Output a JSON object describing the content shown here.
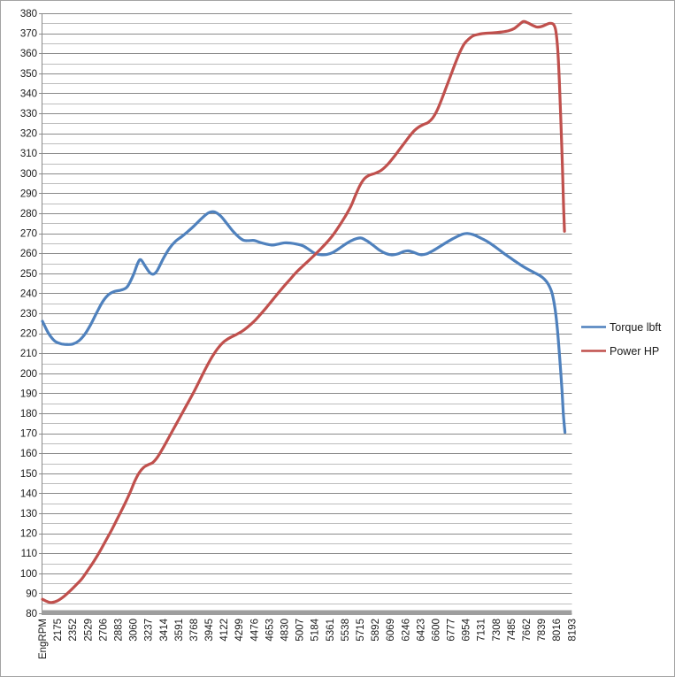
{
  "chart_data": {
    "type": "line",
    "title": "",
    "x_axis": {
      "label_rotation_deg": 90,
      "tick_labels": [
        "EngRPM",
        "2175",
        "2352",
        "2529",
        "2706",
        "2883",
        "3060",
        "3237",
        "3414",
        "3591",
        "3768",
        "3945",
        "4122",
        "4299",
        "4476",
        "4653",
        "4830",
        "5007",
        "5184",
        "5361",
        "5538",
        "5715",
        "5892",
        "6069",
        "6246",
        "6423",
        "6600",
        "6777",
        "6954",
        "7131",
        "7308",
        "7485",
        "7662",
        "7839",
        "8016",
        "8193"
      ]
    },
    "y_axis": {
      "min": 80,
      "max": 380,
      "major_step": 10,
      "minor_step": 5,
      "tick_labels": [
        "380",
        "370",
        "360",
        "350",
        "340",
        "330",
        "320",
        "310",
        "300",
        "290",
        "280",
        "270",
        "260",
        "250",
        "240",
        "230",
        "220",
        "210",
        "200",
        "190",
        "180",
        "170",
        "160",
        "150",
        "140",
        "130",
        "120",
        "110",
        "100",
        "90",
        "80"
      ]
    },
    "grid": {
      "major_color": "#8a8a8a",
      "minor_color": "#bdbdbd",
      "axis_bar_color": "#9e9e9e",
      "minor_on": true
    },
    "legend": {
      "position": "right"
    },
    "series": [
      {
        "name": "Torque lbft",
        "color": "#4F81BD",
        "points": [
          [
            0,
            226
          ],
          [
            0.4,
            220
          ],
          [
            0.8,
            216.2
          ],
          [
            1.2,
            214.8
          ],
          [
            1.6,
            214.4
          ],
          [
            2,
            214.6
          ],
          [
            2.4,
            216.2
          ],
          [
            2.8,
            219.5
          ],
          [
            3.2,
            224.5
          ],
          [
            3.6,
            230.5
          ],
          [
            4,
            236
          ],
          [
            4.4,
            239.5
          ],
          [
            4.8,
            241
          ],
          [
            5.2,
            241.6
          ],
          [
            5.6,
            243.2
          ],
          [
            6,
            249
          ],
          [
            6.3,
            255
          ],
          [
            6.5,
            256.8
          ],
          [
            6.8,
            253.5
          ],
          [
            7.1,
            250.3
          ],
          [
            7.35,
            249.6
          ],
          [
            7.6,
            251.5
          ],
          [
            8,
            257.5
          ],
          [
            8.4,
            262.5
          ],
          [
            8.8,
            266
          ],
          [
            9.2,
            268.3
          ],
          [
            9.6,
            270.8
          ],
          [
            10,
            273.5
          ],
          [
            10.4,
            276.5
          ],
          [
            10.8,
            279.3
          ],
          [
            11.1,
            280.6
          ],
          [
            11.4,
            280.6
          ],
          [
            11.8,
            278.5
          ],
          [
            12.2,
            274.8
          ],
          [
            12.6,
            271
          ],
          [
            13,
            268
          ],
          [
            13.3,
            266.5
          ],
          [
            13.6,
            266.3
          ],
          [
            14,
            266.4
          ],
          [
            14.4,
            265.4
          ],
          [
            14.8,
            264.6
          ],
          [
            15.2,
            264.1
          ],
          [
            15.6,
            264.6
          ],
          [
            16,
            265.2
          ],
          [
            16.4,
            265.1
          ],
          [
            16.8,
            264.6
          ],
          [
            17.2,
            263.8
          ],
          [
            17.6,
            262
          ],
          [
            18,
            260
          ],
          [
            18.4,
            259.3
          ],
          [
            18.8,
            259.4
          ],
          [
            19.2,
            260.4
          ],
          [
            19.6,
            262.3
          ],
          [
            20,
            264.4
          ],
          [
            20.4,
            266.2
          ],
          [
            20.8,
            267.4
          ],
          [
            21.1,
            267.6
          ],
          [
            21.5,
            266
          ],
          [
            21.9,
            263.8
          ],
          [
            22.3,
            261.5
          ],
          [
            22.7,
            259.9
          ],
          [
            23.1,
            259.2
          ],
          [
            23.5,
            259.7
          ],
          [
            23.9,
            260.9
          ],
          [
            24.2,
            261.2
          ],
          [
            24.6,
            260.3
          ],
          [
            25,
            259.3
          ],
          [
            25.4,
            259.7
          ],
          [
            25.8,
            261.2
          ],
          [
            26.2,
            263
          ],
          [
            26.6,
            264.9
          ],
          [
            27,
            266.7
          ],
          [
            27.4,
            268.3
          ],
          [
            27.8,
            269.6
          ],
          [
            28.1,
            269.9
          ],
          [
            28.5,
            269.3
          ],
          [
            28.9,
            267.9
          ],
          [
            29.3,
            266.4
          ],
          [
            29.7,
            264.5
          ],
          [
            30.1,
            262.3
          ],
          [
            30.5,
            260
          ],
          [
            30.9,
            257.9
          ],
          [
            31.3,
            255.8
          ],
          [
            31.7,
            253.8
          ],
          [
            32.1,
            252
          ],
          [
            32.5,
            250.4
          ],
          [
            32.9,
            248.8
          ],
          [
            33.2,
            247
          ],
          [
            33.45,
            244.5
          ],
          [
            33.7,
            240
          ],
          [
            33.9,
            232
          ],
          [
            34.05,
            222
          ],
          [
            34.2,
            208
          ],
          [
            34.35,
            192
          ],
          [
            34.45,
            179
          ],
          [
            34.55,
            170.5
          ]
        ]
      },
      {
        "name": "Power HP",
        "color": "#C0504D",
        "points": [
          [
            0,
            87
          ],
          [
            0.3,
            85.9
          ],
          [
            0.6,
            85.4
          ],
          [
            1,
            86.3
          ],
          [
            1.4,
            88.3
          ],
          [
            1.8,
            91
          ],
          [
            2.2,
            94
          ],
          [
            2.6,
            97.2
          ],
          [
            3,
            101.5
          ],
          [
            3.4,
            106
          ],
          [
            3.8,
            111
          ],
          [
            4.2,
            116.5
          ],
          [
            4.6,
            122
          ],
          [
            5,
            128
          ],
          [
            5.4,
            134
          ],
          [
            5.8,
            140.5
          ],
          [
            6.1,
            146
          ],
          [
            6.4,
            150.3
          ],
          [
            6.7,
            153
          ],
          [
            7,
            154.3
          ],
          [
            7.3,
            155.4
          ],
          [
            7.6,
            158
          ],
          [
            8,
            163
          ],
          [
            8.4,
            168.5
          ],
          [
            8.8,
            174
          ],
          [
            9.2,
            179.5
          ],
          [
            9.6,
            185
          ],
          [
            10,
            190.5
          ],
          [
            10.4,
            196.5
          ],
          [
            10.8,
            202.5
          ],
          [
            11.2,
            208
          ],
          [
            11.6,
            212.5
          ],
          [
            12,
            215.8
          ],
          [
            12.4,
            217.8
          ],
          [
            12.8,
            219.3
          ],
          [
            13.2,
            221
          ],
          [
            13.6,
            223.3
          ],
          [
            14,
            226
          ],
          [
            14.4,
            229.3
          ],
          [
            14.8,
            232.8
          ],
          [
            15.2,
            236.5
          ],
          [
            15.6,
            240.2
          ],
          [
            16,
            243.8
          ],
          [
            16.4,
            247.2
          ],
          [
            16.8,
            250.6
          ],
          [
            17.2,
            253.5
          ],
          [
            17.6,
            256.3
          ],
          [
            18,
            259.2
          ],
          [
            18.4,
            262.2
          ],
          [
            18.8,
            265.4
          ],
          [
            19.2,
            269
          ],
          [
            19.6,
            273.4
          ],
          [
            20,
            278.2
          ],
          [
            20.4,
            283.6
          ],
          [
            20.7,
            289
          ],
          [
            21,
            294
          ],
          [
            21.3,
            297.4
          ],
          [
            21.6,
            299
          ],
          [
            22,
            300
          ],
          [
            22.4,
            301.5
          ],
          [
            22.8,
            304.2
          ],
          [
            23.2,
            307.8
          ],
          [
            23.6,
            311.8
          ],
          [
            24,
            315.8
          ],
          [
            24.3,
            318.8
          ],
          [
            24.6,
            321.4
          ],
          [
            24.9,
            323.2
          ],
          [
            25.2,
            324.4
          ],
          [
            25.5,
            325.4
          ],
          [
            25.8,
            327.6
          ],
          [
            26.1,
            331.5
          ],
          [
            26.4,
            337
          ],
          [
            26.7,
            343
          ],
          [
            27,
            349
          ],
          [
            27.3,
            355
          ],
          [
            27.6,
            360.5
          ],
          [
            27.9,
            364.8
          ],
          [
            28.2,
            367.2
          ],
          [
            28.5,
            368.8
          ],
          [
            28.9,
            369.6
          ],
          [
            29.3,
            370
          ],
          [
            29.8,
            370.2
          ],
          [
            30.3,
            370.6
          ],
          [
            30.8,
            371.2
          ],
          [
            31.2,
            372.4
          ],
          [
            31.5,
            374.2
          ],
          [
            31.8,
            375.9
          ],
          [
            32.1,
            375.2
          ],
          [
            32.4,
            374
          ],
          [
            32.7,
            373.1
          ],
          [
            33,
            373.4
          ],
          [
            33.3,
            374.3
          ],
          [
            33.55,
            375
          ],
          [
            33.8,
            374.4
          ],
          [
            33.95,
            371
          ],
          [
            34.08,
            361
          ],
          [
            34.18,
            346
          ],
          [
            34.28,
            326
          ],
          [
            34.38,
            304
          ],
          [
            34.46,
            283
          ],
          [
            34.52,
            271
          ]
        ]
      }
    ]
  }
}
